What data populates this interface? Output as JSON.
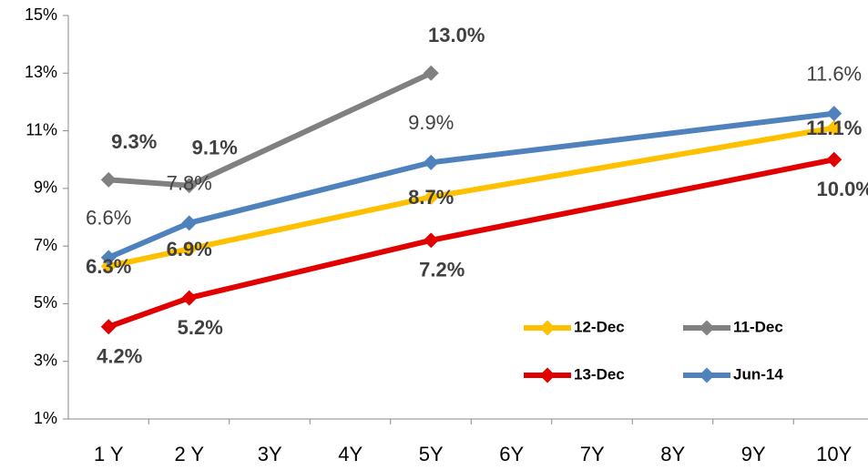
{
  "chart_data": {
    "type": "line",
    "xlim": [
      0.5,
      10.5
    ],
    "xticks": [
      {
        "value": 1,
        "label": "1 Y"
      },
      {
        "value": 2,
        "label": "2 Y"
      },
      {
        "value": 3,
        "label": "3Y"
      },
      {
        "value": 4,
        "label": "4Y"
      },
      {
        "value": 5,
        "label": "5Y"
      },
      {
        "value": 6,
        "label": "6Y"
      },
      {
        "value": 7,
        "label": "7Y"
      },
      {
        "value": 8,
        "label": "8Y"
      },
      {
        "value": 9,
        "label": "9Y"
      },
      {
        "value": 10,
        "label": "10Y"
      }
    ],
    "ylim": [
      1,
      15
    ],
    "yticks": [
      {
        "value": 1,
        "label": "1%"
      },
      {
        "value": 3,
        "label": "3%"
      },
      {
        "value": 5,
        "label": "5%"
      },
      {
        "value": 7,
        "label": "7%"
      },
      {
        "value": 9,
        "label": "9%"
      },
      {
        "value": 11,
        "label": "11%"
      },
      {
        "value": 13,
        "label": "13%"
      },
      {
        "value": 15,
        "label": "15%"
      }
    ],
    "series": [
      {
        "name": "12-Dec",
        "color": "#FFC000",
        "x": [
          1,
          2,
          5,
          10
        ],
        "values": [
          6.3,
          6.9,
          8.7,
          11.1
        ],
        "value_labels": [
          "6.3%",
          "6.9%",
          "8.7%",
          "11.1%"
        ]
      },
      {
        "name": "11-Dec",
        "color": "#808080",
        "x": [
          1,
          2,
          5
        ],
        "values": [
          9.3,
          9.1,
          13.0
        ],
        "value_labels": [
          "9.3%",
          "9.1%",
          "13.0%"
        ]
      },
      {
        "name": "13-Dec",
        "color": "#E00000",
        "x": [
          1,
          2,
          5,
          10
        ],
        "values": [
          4.2,
          5.2,
          7.2,
          10.0
        ],
        "value_labels": [
          "4.2%",
          "5.2%",
          "7.2%",
          "10.0%"
        ]
      },
      {
        "name": "Jun-14",
        "color": "#4F81BD",
        "x": [
          1,
          2,
          5,
          10
        ],
        "values": [
          6.6,
          7.8,
          9.9,
          11.6
        ],
        "value_labels": [
          "6.6%",
          "7.8%",
          "9.9%",
          "11.6%"
        ]
      }
    ]
  }
}
